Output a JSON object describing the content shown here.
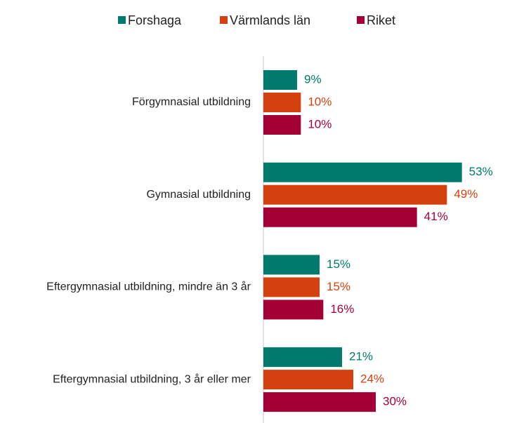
{
  "chart_data": {
    "type": "bar",
    "orientation": "horizontal",
    "categories": [
      "Förgymnasial utbildning",
      "Gymnasial utbildning",
      "Eftergymnasial utbildning, mindre än 3 år",
      "Eftergymnasial utbildning, 3 år eller mer"
    ],
    "series": [
      {
        "name": "Forshaga",
        "color": "#007a6c",
        "values": [
          9,
          53,
          15,
          21
        ],
        "value_labels": [
          "9%",
          "53%",
          "15%",
          "21%"
        ]
      },
      {
        "name": "Värmlands län",
        "color": "#d5410e",
        "values": [
          10,
          49,
          15,
          24
        ],
        "value_labels": [
          "10%",
          "49%",
          "15%",
          "24%"
        ]
      },
      {
        "name": "Riket",
        "color": "#a50035",
        "values": [
          10,
          41,
          16,
          30
        ],
        "value_labels": [
          "10%",
          "41%",
          "16%",
          "30%"
        ]
      }
    ],
    "xlim": [
      0,
      60
    ],
    "legend": "top"
  }
}
